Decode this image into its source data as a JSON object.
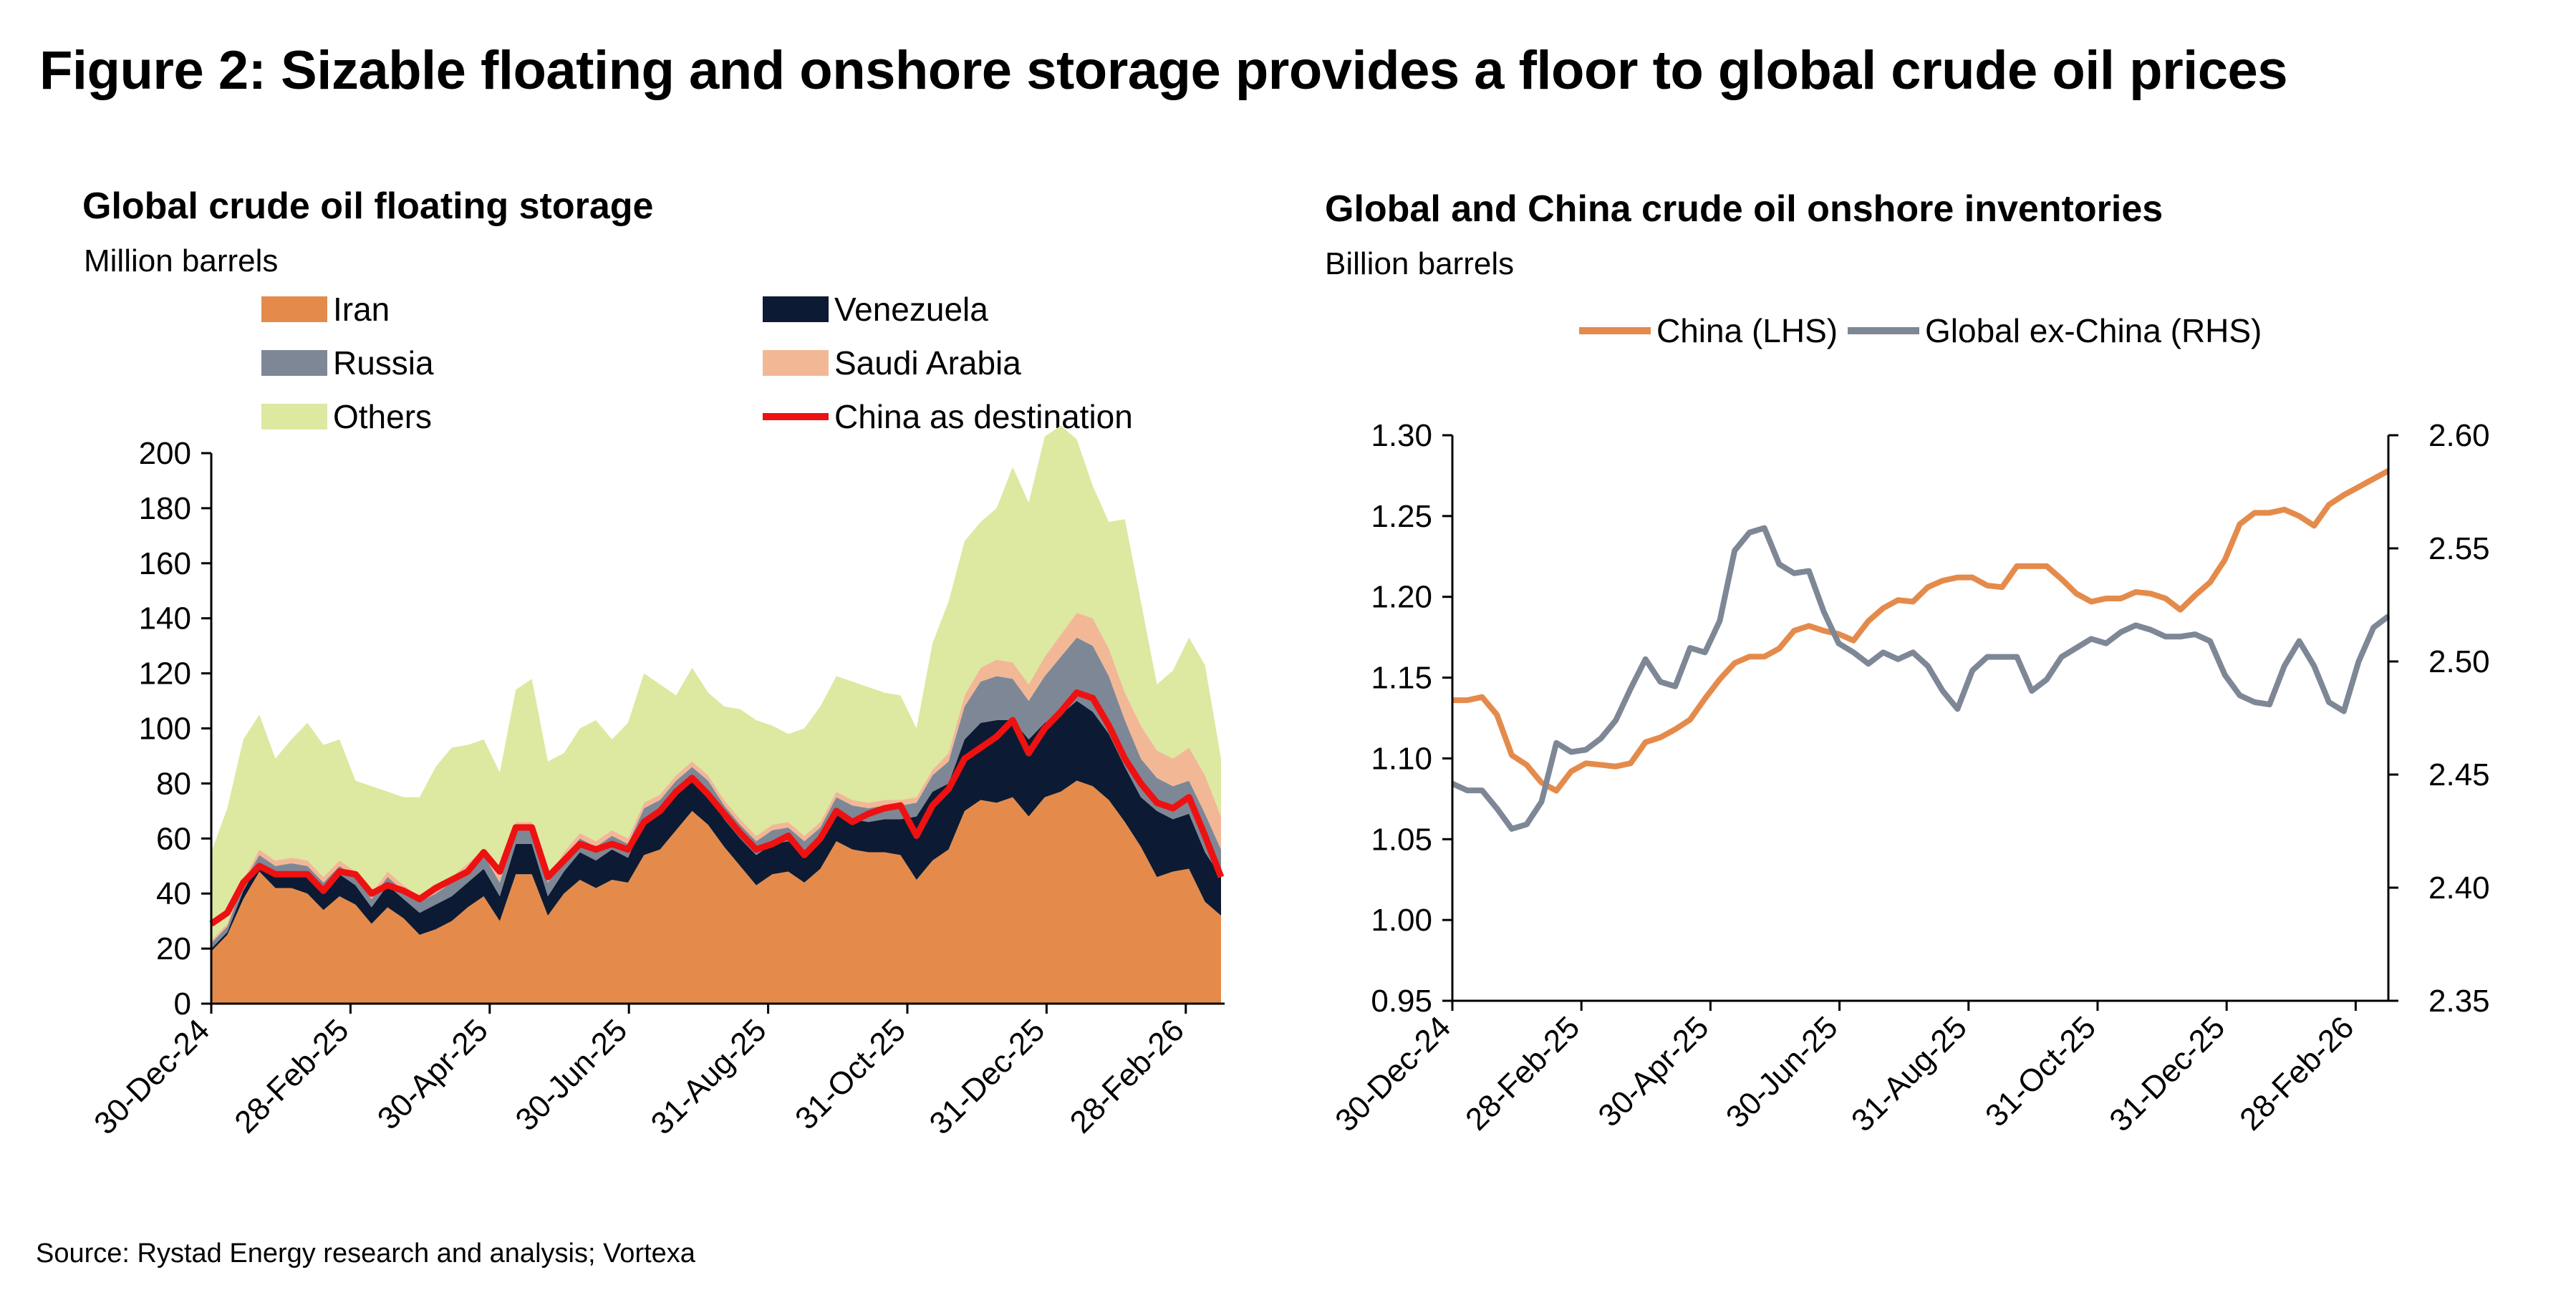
{
  "figure_title": "Figure 2: Sizable floating and onshore storage provides a floor to global crude oil prices",
  "source": "Source: Rystad Energy research and analysis; Vortexa",
  "colors": {
    "iran": "#E48B4C",
    "venezuela": "#0C1B33",
    "russia": "#7E8796",
    "saudi": "#F2B896",
    "others": "#DDE8A1",
    "china_dest": "#EE1111",
    "china_lhs": "#E48B4C",
    "global_ex_china": "#7E8796"
  },
  "chart_data": [
    {
      "type": "area",
      "title": "Global crude oil floating storage",
      "subtitle": "Million barrels",
      "ylim": [
        0,
        200
      ],
      "yticks": [
        "0",
        "20",
        "40",
        "60",
        "80",
        "100",
        "120",
        "140",
        "160",
        "180",
        "200"
      ],
      "xtick_labels": [
        "30-Dec-24",
        "28-Feb-25",
        "30-Apr-25",
        "30-Jun-25",
        "31-Aug-25",
        "31-Oct-25",
        "31-Dec-25",
        "28-Feb-26"
      ],
      "legend_placement": "top",
      "stack_order": [
        "Iran",
        "Venezuela",
        "Russia",
        "Saudi Arabia",
        "Others"
      ],
      "series": [
        {
          "name": "Iran",
          "values": [
            19,
            25,
            38,
            48,
            42,
            42,
            40,
            34,
            39,
            36,
            29,
            35,
            31,
            25,
            27,
            30,
            35,
            39,
            30,
            47,
            47,
            32,
            40,
            45,
            42,
            45,
            44,
            54,
            56,
            63,
            70,
            65,
            57,
            50,
            43,
            47,
            48,
            44,
            49,
            59,
            56,
            55,
            55,
            54,
            45,
            52,
            56,
            70,
            74,
            73,
            75,
            68,
            75,
            77,
            81,
            79,
            74,
            66,
            57,
            46,
            48,
            49,
            37,
            32
          ]
        },
        {
          "name": "Venezuela",
          "values": [
            1,
            1,
            3,
            3,
            5,
            6,
            7,
            7,
            8,
            7,
            6,
            8,
            7,
            8,
            9,
            9,
            9,
            10,
            9,
            11,
            11,
            7,
            8,
            10,
            10,
            11,
            9,
            12,
            13,
            13,
            11,
            11,
            10,
            10,
            11,
            11,
            11,
            10,
            10,
            11,
            11,
            11,
            12,
            13,
            23,
            25,
            24,
            26,
            28,
            30,
            28,
            28,
            27,
            28,
            29,
            27,
            24,
            20,
            18,
            24,
            19,
            20,
            18,
            14
          ]
        },
        {
          "name": "Russia",
          "values": [
            2,
            2,
            3,
            3,
            3,
            3,
            3,
            3,
            3,
            3,
            3,
            3,
            3,
            4,
            4,
            5,
            5,
            5,
            5,
            6,
            6,
            5,
            5,
            5,
            5,
            5,
            5,
            5,
            5,
            5,
            5,
            5,
            5,
            5,
            5,
            5,
            5,
            5,
            5,
            5,
            5,
            5,
            5,
            5,
            5,
            6,
            8,
            12,
            15,
            16,
            15,
            14,
            17,
            21,
            23,
            24,
            21,
            17,
            14,
            12,
            12,
            12,
            14,
            10
          ]
        },
        {
          "name": "Saudi Arabia",
          "values": [
            1,
            1,
            1,
            2,
            2,
            2,
            2,
            2,
            2,
            2,
            2,
            2,
            2,
            2,
            2,
            2,
            2,
            2,
            2,
            2,
            2,
            2,
            2,
            2,
            2,
            2,
            2,
            2,
            2,
            2,
            2,
            2,
            2,
            2,
            2,
            2,
            2,
            2,
            2,
            2,
            2,
            2,
            2,
            2,
            2,
            2,
            3,
            4,
            5,
            6,
            6,
            6,
            7,
            8,
            9,
            10,
            10,
            10,
            12,
            10,
            10,
            12,
            14,
            12
          ]
        },
        {
          "name": "Others",
          "values": [
            32,
            42,
            51,
            49,
            37,
            43,
            50,
            48,
            44,
            33,
            39,
            29,
            32,
            36,
            44,
            47,
            43,
            40,
            38,
            48,
            52,
            42,
            36,
            38,
            44,
            33,
            42,
            47,
            40,
            29,
            34,
            30,
            34,
            40,
            42,
            36,
            32,
            39,
            42,
            42,
            43,
            42,
            39,
            38,
            25,
            46,
            55,
            56,
            53,
            55,
            71,
            66,
            80,
            76,
            63,
            48,
            46,
            63,
            45,
            24,
            32,
            40,
            40,
            21
          ]
        },
        {
          "name": "China as destination",
          "values": [
            29,
            33,
            44,
            50,
            47,
            47,
            47,
            41,
            48,
            47,
            40,
            43,
            41,
            38,
            42,
            45,
            48,
            55,
            48,
            64,
            64,
            46,
            52,
            58,
            56,
            58,
            56,
            66,
            70,
            77,
            82,
            76,
            69,
            62,
            56,
            58,
            61,
            54,
            60,
            70,
            66,
            69,
            71,
            72,
            61,
            72,
            78,
            89,
            93,
            97,
            103,
            91,
            100,
            106,
            113,
            111,
            101,
            89,
            80,
            73,
            71,
            75,
            61,
            46
          ]
        }
      ]
    },
    {
      "type": "line",
      "title": "Global and China crude oil onshore inventories",
      "subtitle": "Billion barrels",
      "ylim_left": [
        0.95,
        1.3
      ],
      "ylim_right": [
        2.35,
        2.6
      ],
      "yticks_left": [
        "0.95",
        "1.00",
        "1.05",
        "1.10",
        "1.15",
        "1.20",
        "1.25",
        "1.30"
      ],
      "yticks_right": [
        "2.35",
        "2.40",
        "2.45",
        "2.50",
        "2.55",
        "2.60"
      ],
      "xtick_labels": [
        "30-Dec-24",
        "28-Feb-25",
        "30-Apr-25",
        "30-Jun-25",
        "31-Aug-25",
        "31-Oct-25",
        "31-Dec-25",
        "28-Feb-26"
      ],
      "legend_placement": "top",
      "series": [
        {
          "name": "China (LHS)",
          "axis": "left",
          "values": [
            1.136,
            1.136,
            1.138,
            1.127,
            1.102,
            1.096,
            1.085,
            1.08,
            1.092,
            1.097,
            1.096,
            1.095,
            1.097,
            1.11,
            1.113,
            1.118,
            1.124,
            1.137,
            1.149,
            1.159,
            1.163,
            1.163,
            1.168,
            1.179,
            1.182,
            1.179,
            1.177,
            1.173,
            1.185,
            1.193,
            1.198,
            1.197,
            1.206,
            1.21,
            1.212,
            1.212,
            1.207,
            1.206,
            1.219,
            1.219,
            1.219,
            1.211,
            1.202,
            1.197,
            1.199,
            1.199,
            1.203,
            1.202,
            1.199,
            1.192,
            1.201,
            1.209,
            1.223,
            1.245,
            1.252,
            1.252,
            1.254,
            1.25,
            1.244,
            1.257,
            1.263,
            1.268,
            1.273,
            1.278
          ]
        },
        {
          "name": "Global ex-China (RHS)",
          "axis": "right",
          "values": [
            2.446,
            2.443,
            2.443,
            2.435,
            2.426,
            2.428,
            2.438,
            2.464,
            2.46,
            2.461,
            2.466,
            2.474,
            2.488,
            2.501,
            2.491,
            2.489,
            2.506,
            2.504,
            2.518,
            2.549,
            2.557,
            2.559,
            2.543,
            2.539,
            2.54,
            2.522,
            2.508,
            2.504,
            2.499,
            2.504,
            2.501,
            2.504,
            2.498,
            2.487,
            2.479,
            2.496,
            2.502,
            2.502,
            2.502,
            2.487,
            2.492,
            2.502,
            2.506,
            2.51,
            2.508,
            2.513,
            2.516,
            2.514,
            2.511,
            2.511,
            2.512,
            2.509,
            2.494,
            2.485,
            2.482,
            2.481,
            2.498,
            2.509,
            2.498,
            2.482,
            2.478,
            2.5,
            2.515,
            2.52
          ]
        }
      ]
    }
  ]
}
